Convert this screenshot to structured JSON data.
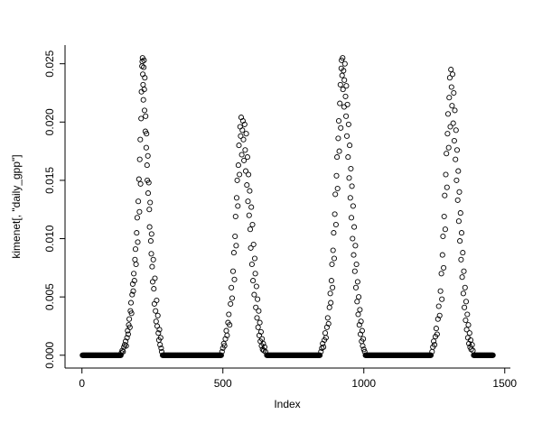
{
  "figure": {
    "background": "#ffffff",
    "point_color": "#000000",
    "axis_color": "#000000"
  },
  "chart_data": {
    "type": "scatter",
    "title": "",
    "xlabel": "Index",
    "ylabel": "kimenet[, \"daily_gpp\"]",
    "marker": "open-circle",
    "grid": false,
    "legend": "none",
    "xlim": [
      -60,
      1520
    ],
    "ylim": [
      -0.0011,
      0.0266
    ],
    "x_ticks": [
      0,
      500,
      1000,
      1500
    ],
    "x_tick_labels": [
      "0",
      "500",
      "1000",
      "1500"
    ],
    "y_ticks": [
      0.0,
      0.005,
      0.01,
      0.015,
      0.02,
      0.025
    ],
    "y_tick_labels": [
      "0.000",
      "0.005",
      "0.010",
      "0.015",
      "0.020",
      "0.025"
    ],
    "zero_value": 0.0,
    "zero_step": 2,
    "zero_runs": [
      [
        2,
        138
      ],
      [
        286,
        494
      ],
      [
        656,
        844
      ],
      [
        1006,
        1238
      ],
      [
        1390,
        1458
      ]
    ],
    "peaks": [
      {
        "points": [
          [
            140,
            0.0002
          ],
          [
            143,
            0.0004
          ],
          [
            146,
            0.0003
          ],
          [
            149,
            0.0007
          ],
          [
            152,
            0.0009
          ],
          [
            155,
            0.0012
          ],
          [
            157,
            0.0008
          ],
          [
            160,
            0.0015
          ],
          [
            162,
            0.0021
          ],
          [
            164,
            0.0018
          ],
          [
            166,
            0.0026
          ],
          [
            168,
            0.0031
          ],
          [
            170,
            0.0024
          ],
          [
            172,
            0.0038
          ],
          [
            174,
            0.0045
          ],
          [
            176,
            0.0036
          ],
          [
            178,
            0.0052
          ],
          [
            180,
            0.0061
          ],
          [
            182,
            0.0055
          ],
          [
            184,
            0.007
          ],
          [
            186,
            0.0064
          ],
          [
            188,
            0.0082
          ],
          [
            190,
            0.0091
          ],
          [
            192,
            0.0078
          ],
          [
            194,
            0.0105
          ],
          [
            196,
            0.0118
          ],
          [
            198,
            0.0097
          ],
          [
            200,
            0.0132
          ],
          [
            202,
            0.0151
          ],
          [
            204,
            0.0123
          ],
          [
            205,
            0.0168
          ],
          [
            207,
            0.0185
          ],
          [
            208,
            0.0147
          ],
          [
            210,
            0.0203
          ],
          [
            211,
            0.0226
          ],
          [
            213,
            0.0248
          ],
          [
            214,
            0.0252
          ],
          [
            215,
            0.0255
          ],
          [
            216,
            0.0241
          ],
          [
            217,
            0.0232
          ],
          [
            218,
            0.0219
          ],
          [
            219,
            0.0247
          ],
          [
            220,
            0.0253
          ],
          [
            221,
            0.0228
          ],
          [
            222,
            0.021
          ],
          [
            223,
            0.0238
          ],
          [
            225,
            0.0192
          ],
          [
            226,
            0.0205
          ],
          [
            228,
            0.0178
          ],
          [
            229,
            0.019
          ],
          [
            231,
            0.0163
          ],
          [
            232,
            0.015
          ],
          [
            234,
            0.0171
          ],
          [
            235,
            0.0139
          ],
          [
            237,
            0.0148
          ],
          [
            239,
            0.0125
          ],
          [
            240,
            0.011
          ],
          [
            242,
            0.0131
          ],
          [
            244,
            0.0098
          ],
          [
            246,
            0.0087
          ],
          [
            247,
            0.0104
          ],
          [
            249,
            0.0076
          ],
          [
            251,
            0.0063
          ],
          [
            253,
            0.0082
          ],
          [
            255,
            0.0057
          ],
          [
            257,
            0.0044
          ],
          [
            259,
            0.0066
          ],
          [
            261,
            0.0038
          ],
          [
            263,
            0.0029
          ],
          [
            265,
            0.0047
          ],
          [
            267,
            0.0025
          ],
          [
            269,
            0.0034
          ],
          [
            271,
            0.0019
          ],
          [
            273,
            0.0013
          ],
          [
            275,
            0.0022
          ],
          [
            277,
            0.0009
          ],
          [
            279,
            0.0015
          ],
          [
            281,
            0.0006
          ],
          [
            283,
            0.0003
          ]
        ]
      },
      {
        "points": [
          [
            497,
            0.0003
          ],
          [
            500,
            0.0006
          ],
          [
            503,
            0.001
          ],
          [
            506,
            0.0008
          ],
          [
            509,
            0.0014
          ],
          [
            512,
            0.0021
          ],
          [
            515,
            0.0017
          ],
          [
            518,
            0.0028
          ],
          [
            521,
            0.0035
          ],
          [
            524,
            0.0026
          ],
          [
            527,
            0.0044
          ],
          [
            530,
            0.0058
          ],
          [
            533,
            0.0049
          ],
          [
            536,
            0.0072
          ],
          [
            539,
            0.0088
          ],
          [
            541,
            0.0065
          ],
          [
            543,
            0.0102
          ],
          [
            545,
            0.0119
          ],
          [
            547,
            0.0094
          ],
          [
            549,
            0.0135
          ],
          [
            551,
            0.015
          ],
          [
            553,
            0.0128
          ],
          [
            555,
            0.0163
          ],
          [
            557,
            0.018
          ],
          [
            559,
            0.0155
          ],
          [
            561,
            0.0196
          ],
          [
            563,
            0.0188
          ],
          [
            565,
            0.0204
          ],
          [
            567,
            0.0172
          ],
          [
            569,
            0.0193
          ],
          [
            571,
            0.0201
          ],
          [
            573,
            0.0185
          ],
          [
            575,
            0.0167
          ],
          [
            577,
            0.0198
          ],
          [
            579,
            0.0176
          ],
          [
            581,
            0.0158
          ],
          [
            583,
            0.019
          ],
          [
            585,
            0.0146
          ],
          [
            587,
            0.017
          ],
          [
            589,
            0.0132
          ],
          [
            591,
            0.0155
          ],
          [
            593,
            0.012
          ],
          [
            595,
            0.0141
          ],
          [
            597,
            0.0108
          ],
          [
            599,
            0.0092
          ],
          [
            601,
            0.0127
          ],
          [
            603,
            0.0078
          ],
          [
            605,
            0.0112
          ],
          [
            607,
            0.0064
          ],
          [
            609,
            0.0095
          ],
          [
            611,
            0.0052
          ],
          [
            613,
            0.0083
          ],
          [
            615,
            0.007
          ],
          [
            617,
            0.0041
          ],
          [
            619,
            0.0059
          ],
          [
            621,
            0.0032
          ],
          [
            623,
            0.0048
          ],
          [
            625,
            0.0024
          ],
          [
            627,
            0.0038
          ],
          [
            629,
            0.0017
          ],
          [
            631,
            0.0028
          ],
          [
            633,
            0.0012
          ],
          [
            635,
            0.002
          ],
          [
            637,
            0.0008
          ],
          [
            639,
            0.0014
          ],
          [
            641,
            0.0005
          ],
          [
            643,
            0.001
          ],
          [
            645,
            0.0004
          ],
          [
            648,
            0.0007
          ],
          [
            651,
            0.0003
          ]
        ]
      },
      {
        "points": [
          [
            848,
            0.0003
          ],
          [
            851,
            0.0006
          ],
          [
            854,
            0.001
          ],
          [
            857,
            0.0007
          ],
          [
            860,
            0.0013
          ],
          [
            863,
            0.0019
          ],
          [
            866,
            0.0015
          ],
          [
            869,
            0.0024
          ],
          [
            872,
            0.0032
          ],
          [
            875,
            0.0027
          ],
          [
            878,
            0.0041
          ],
          [
            881,
            0.0053
          ],
          [
            883,
            0.0045
          ],
          [
            885,
            0.0064
          ],
          [
            887,
            0.0078
          ],
          [
            889,
            0.0058
          ],
          [
            891,
            0.009
          ],
          [
            893,
            0.0105
          ],
          [
            895,
            0.0083
          ],
          [
            897,
            0.0121
          ],
          [
            899,
            0.0138
          ],
          [
            901,
            0.0112
          ],
          [
            903,
            0.0154
          ],
          [
            905,
            0.017
          ],
          [
            907,
            0.0143
          ],
          [
            909,
            0.0186
          ],
          [
            911,
            0.0201
          ],
          [
            913,
            0.0175
          ],
          [
            915,
            0.0216
          ],
          [
            917,
            0.0232
          ],
          [
            918,
            0.0195
          ],
          [
            920,
            0.0246
          ],
          [
            921,
            0.0253
          ],
          [
            923,
            0.024
          ],
          [
            925,
            0.0255
          ],
          [
            926,
            0.0228
          ],
          [
            928,
            0.0244
          ],
          [
            930,
            0.0213
          ],
          [
            931,
            0.0236
          ],
          [
            933,
            0.025
          ],
          [
            935,
            0.0222
          ],
          [
            937,
            0.0205
          ],
          [
            938,
            0.0231
          ],
          [
            940,
            0.0188
          ],
          [
            942,
            0.0215
          ],
          [
            944,
            0.017
          ],
          [
            946,
            0.0198
          ],
          [
            948,
            0.0152
          ],
          [
            950,
            0.018
          ],
          [
            952,
            0.0135
          ],
          [
            954,
            0.016
          ],
          [
            956,
            0.0118
          ],
          [
            958,
            0.0145
          ],
          [
            960,
            0.01
          ],
          [
            962,
            0.0128
          ],
          [
            964,
            0.0086
          ],
          [
            966,
            0.011
          ],
          [
            968,
            0.0072
          ],
          [
            970,
            0.0094
          ],
          [
            972,
            0.0058
          ],
          [
            974,
            0.0078
          ],
          [
            976,
            0.0046
          ],
          [
            978,
            0.0063
          ],
          [
            980,
            0.0035
          ],
          [
            982,
            0.005
          ],
          [
            984,
            0.0026
          ],
          [
            986,
            0.0039
          ],
          [
            988,
            0.0018
          ],
          [
            990,
            0.0029
          ],
          [
            992,
            0.0012
          ],
          [
            994,
            0.0021
          ],
          [
            996,
            0.0008
          ],
          [
            998,
            0.0014
          ],
          [
            1000,
            0.0005
          ],
          [
            1003,
            0.0003
          ]
        ]
      },
      {
        "points": [
          [
            1242,
            0.0003
          ],
          [
            1245,
            0.0007
          ],
          [
            1248,
            0.0012
          ],
          [
            1251,
            0.0009
          ],
          [
            1254,
            0.0016
          ],
          [
            1257,
            0.0023
          ],
          [
            1260,
            0.0018
          ],
          [
            1263,
            0.0031
          ],
          [
            1266,
            0.0042
          ],
          [
            1269,
            0.0034
          ],
          [
            1272,
            0.0055
          ],
          [
            1275,
            0.007
          ],
          [
            1277,
            0.0048
          ],
          [
            1279,
            0.0086
          ],
          [
            1281,
            0.0102
          ],
          [
            1283,
            0.0075
          ],
          [
            1285,
            0.0119
          ],
          [
            1287,
            0.0137
          ],
          [
            1289,
            0.0108
          ],
          [
            1291,
            0.0155
          ],
          [
            1293,
            0.0173
          ],
          [
            1295,
            0.0144
          ],
          [
            1297,
            0.019
          ],
          [
            1299,
            0.0207
          ],
          [
            1301,
            0.0178
          ],
          [
            1303,
            0.0221
          ],
          [
            1305,
            0.0238
          ],
          [
            1307,
            0.0196
          ],
          [
            1309,
            0.0245
          ],
          [
            1311,
            0.023
          ],
          [
            1313,
            0.0214
          ],
          [
            1315,
            0.0241
          ],
          [
            1317,
            0.0199
          ],
          [
            1319,
            0.0225
          ],
          [
            1321,
            0.0184
          ],
          [
            1323,
            0.021
          ],
          [
            1325,
            0.0168
          ],
          [
            1327,
            0.0193
          ],
          [
            1329,
            0.015
          ],
          [
            1331,
            0.0176
          ],
          [
            1333,
            0.0133
          ],
          [
            1335,
            0.0158
          ],
          [
            1337,
            0.0115
          ],
          [
            1339,
            0.014
          ],
          [
            1341,
            0.0098
          ],
          [
            1343,
            0.0122
          ],
          [
            1345,
            0.0082
          ],
          [
            1347,
            0.0105
          ],
          [
            1349,
            0.0067
          ],
          [
            1351,
            0.0088
          ],
          [
            1353,
            0.0053
          ],
          [
            1355,
            0.0072
          ],
          [
            1357,
            0.0041
          ],
          [
            1359,
            0.0058
          ],
          [
            1361,
            0.003
          ],
          [
            1363,
            0.0046
          ],
          [
            1365,
            0.0022
          ],
          [
            1367,
            0.0035
          ],
          [
            1369,
            0.0015
          ],
          [
            1371,
            0.0026
          ],
          [
            1373,
            0.001
          ],
          [
            1375,
            0.0019
          ],
          [
            1377,
            0.0007
          ],
          [
            1379,
            0.0013
          ],
          [
            1381,
            0.0005
          ],
          [
            1384,
            0.0009
          ],
          [
            1387,
            0.0004
          ]
        ]
      }
    ]
  }
}
